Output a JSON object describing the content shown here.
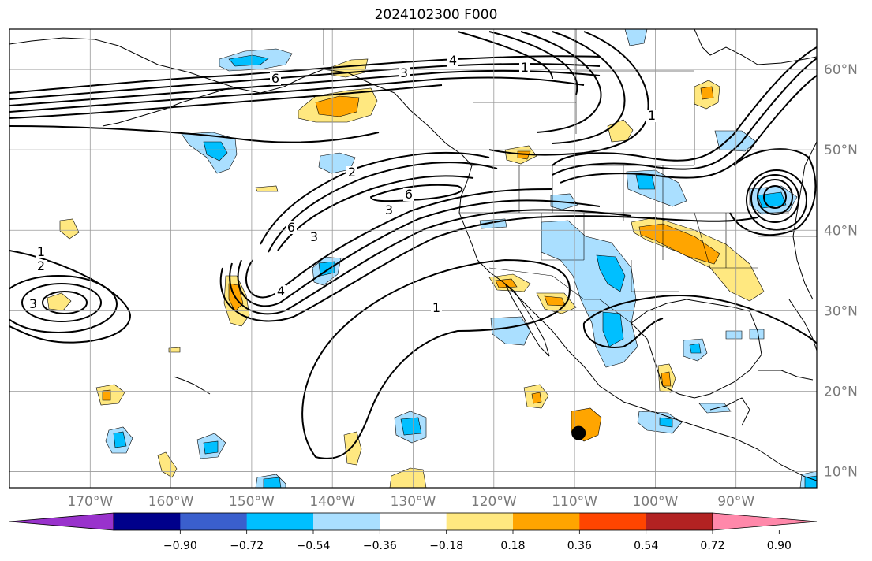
{
  "title": "2024102300 F000",
  "map": {
    "lon_ticks": [
      "170°W",
      "160°W",
      "150°W",
      "140°W",
      "130°W",
      "120°W",
      "110°W",
      "100°W",
      "90°W"
    ],
    "lat_ticks": [
      "60°N",
      "50°N",
      "40°N",
      "30°N",
      "20°N",
      "10°N"
    ],
    "contour_labels": [
      "1",
      "2",
      "3",
      "3",
      "6",
      "6",
      "6",
      "1",
      "3",
      "1",
      "4",
      "1",
      "2",
      "3",
      "4"
    ],
    "storm_marker": {
      "lon": -109.5,
      "lat": 14.8
    },
    "colors": {
      "strong_negative": "#00bfff",
      "weak_negative": "#aadfff",
      "weak_positive": "#ffe880",
      "strong_positive": "#ffa500",
      "contour": "#000000",
      "grid": "#9a9a9a",
      "tick_label": "#7a7a7a"
    }
  },
  "colorbar": {
    "colors": [
      "#9932cc",
      "#00008b",
      "#3a5fcd",
      "#00bfff",
      "#aadfff",
      "#ffffff",
      "#ffe880",
      "#ffa500",
      "#ff4500",
      "#b22222",
      "#ff88aa"
    ],
    "tick_labels": [
      "−0.90",
      "−0.72",
      "−0.54",
      "−0.36",
      "−0.18",
      "0.18",
      "0.36",
      "0.54",
      "0.72",
      "0.90"
    ]
  }
}
